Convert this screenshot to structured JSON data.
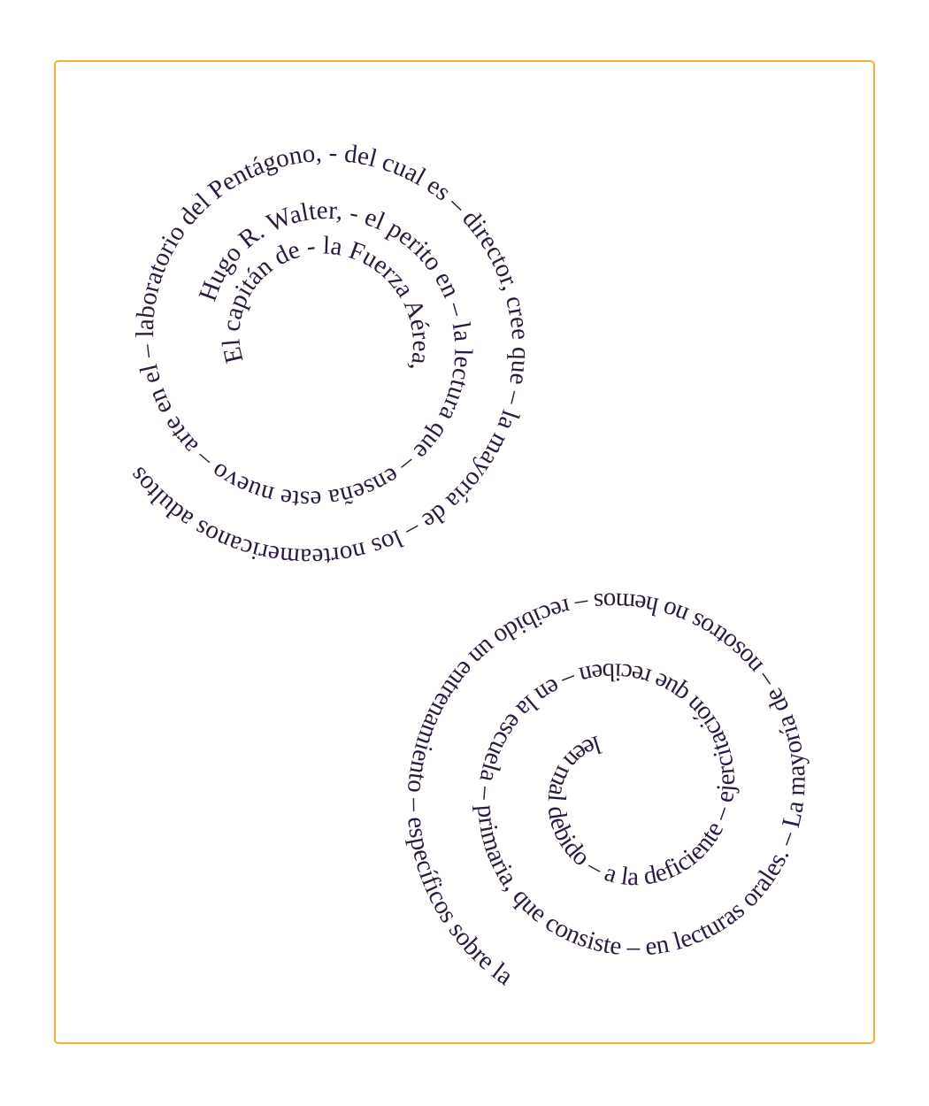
{
  "colors": {
    "frame_border": "#f2b136",
    "text": "#2b1a40",
    "background": "#ffffff"
  },
  "spirals": {
    "upper": {
      "text": "Hugo R. Walter, - el perito en – la lectura que – enseña este nuevo – arte en el – laboratorio del Pentágono, - del cual es – director, cree que – la mayoría de – los norteamericanos adultos"
    },
    "upper_inner": {
      "text": "El capitán de - la Fuerza Aérea,"
    },
    "lower": {
      "text": "leen mal debido – a la deficiente – ejercitación que reciben – en la escuela – primaria, que consiste – en lecturas orales. – La mayoría de – nosotros no hemos – recibido un entrenamiento – específicos sobre la"
    }
  }
}
